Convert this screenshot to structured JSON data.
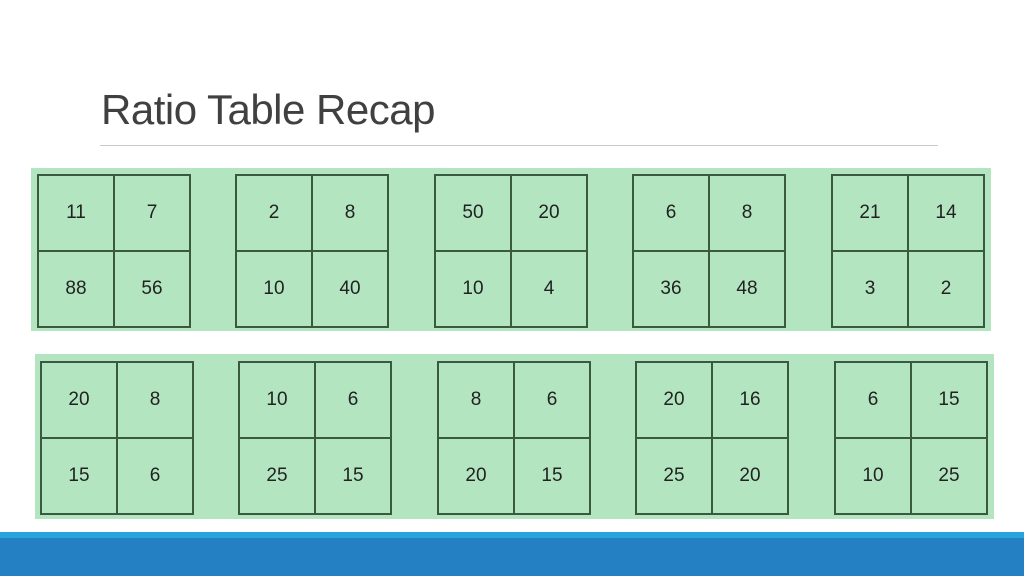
{
  "title": "Ratio Table Recap",
  "rows": [
    [
      [
        "11",
        "7",
        "88",
        "56"
      ],
      [
        "2",
        "8",
        "10",
        "40"
      ],
      [
        "50",
        "20",
        "10",
        "4"
      ],
      [
        "6",
        "8",
        "36",
        "48"
      ],
      [
        "21",
        "14",
        "3",
        "2"
      ]
    ],
    [
      [
        "20",
        "8",
        "15",
        "6"
      ],
      [
        "10",
        "6",
        "25",
        "15"
      ],
      [
        "8",
        "6",
        "20",
        "15"
      ],
      [
        "20",
        "16",
        "25",
        "20"
      ],
      [
        "6",
        "15",
        "10",
        "25"
      ]
    ]
  ],
  "colors": {
    "band": "#b3e6c0",
    "accent_light": "#27a4dc",
    "accent_dark": "#2580c3"
  }
}
